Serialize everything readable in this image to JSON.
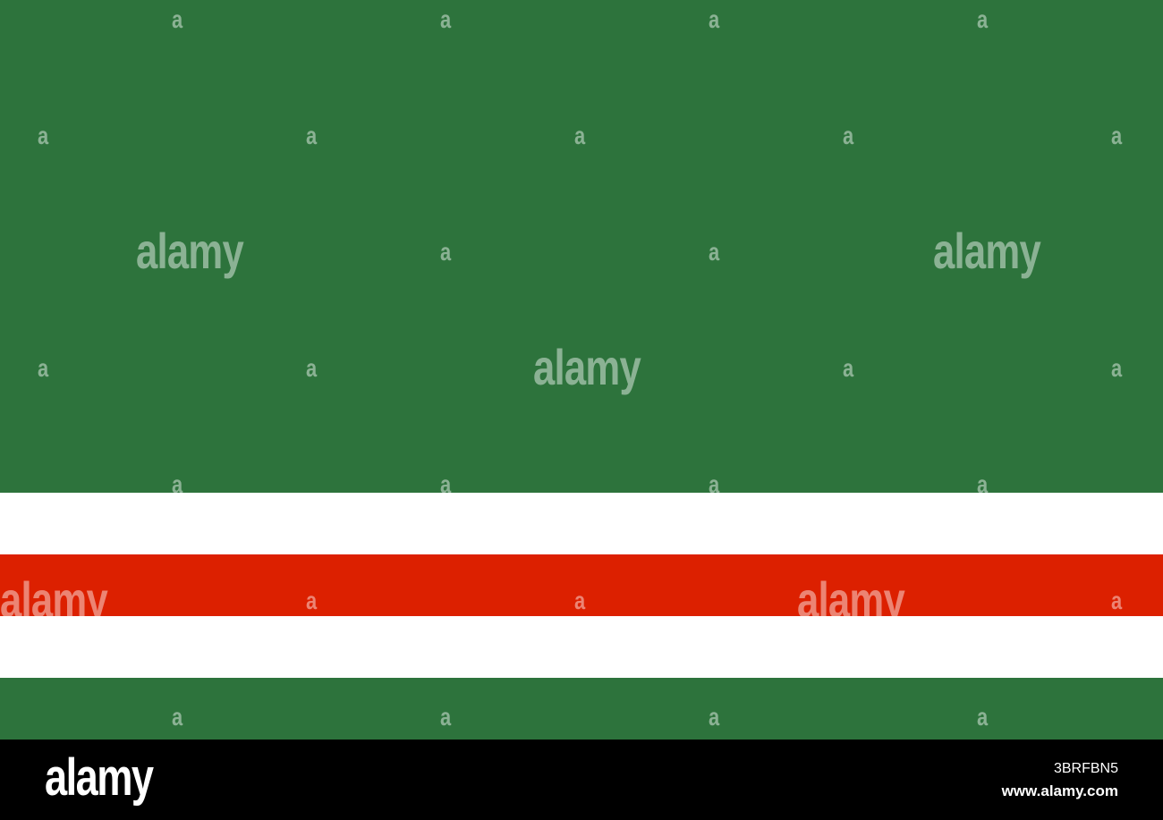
{
  "flag": {
    "colors": {
      "green": "#2d733c",
      "white": "#ffffff",
      "red": "#dc2000"
    },
    "stripes": [
      "green",
      "white",
      "red",
      "white",
      "green"
    ]
  },
  "watermark": {
    "brand": "alamy",
    "letter": "a"
  },
  "footer": {
    "logo": "alamy",
    "image_id": "3BRFBN5",
    "url": "www.alamy.com"
  }
}
